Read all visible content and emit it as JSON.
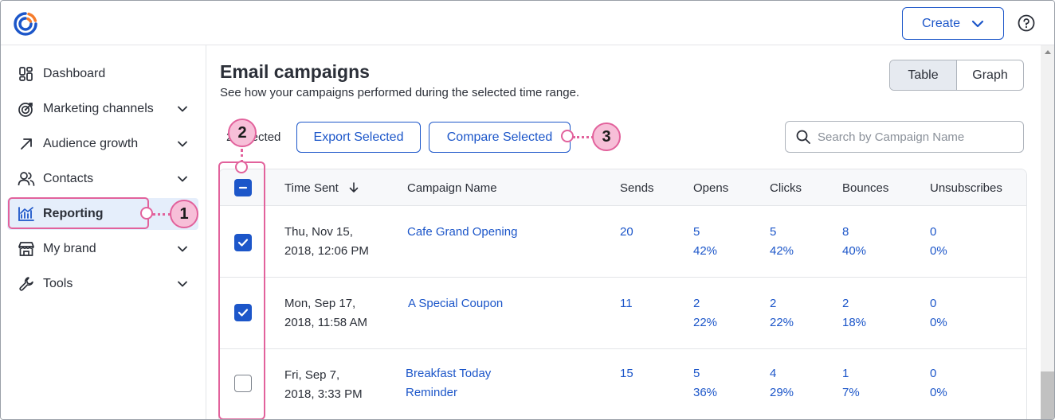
{
  "header": {
    "create_label": "Create"
  },
  "sidebar": {
    "items": [
      {
        "label": "Dashboard",
        "icon": "dashboard-icon"
      },
      {
        "label": "Marketing channels",
        "icon": "target-icon"
      },
      {
        "label": "Audience growth",
        "icon": "arrow-up-right-icon"
      },
      {
        "label": "Contacts",
        "icon": "people-icon"
      },
      {
        "label": "Reporting",
        "icon": "chart-icon"
      },
      {
        "label": "My brand",
        "icon": "storefront-icon"
      },
      {
        "label": "Tools",
        "icon": "wrench-icon"
      }
    ]
  },
  "main": {
    "title": "Email campaigns",
    "subtitle": "See how your campaigns performed during the selected time range.",
    "view_toggle": {
      "table": "Table",
      "graph": "Graph"
    },
    "selected_count": "2 selected",
    "export_label": "Export Selected",
    "compare_label": "Compare Selected",
    "search_placeholder": "Search by Campaign Name"
  },
  "table": {
    "columns": [
      "Time Sent",
      "Campaign Name",
      "Sends",
      "Opens",
      "Clicks",
      "Bounces",
      "Unsubscribes"
    ],
    "rows": [
      {
        "checked": true,
        "date1": "Thu, Nov 15,",
        "date2": "2018, 12:06 PM",
        "name1": "Cafe Grand Opening",
        "name2": "",
        "sends": "20",
        "opens": "5",
        "opens_pct": "42%",
        "clicks": "5",
        "clicks_pct": "42%",
        "bounces": "8",
        "bounces_pct": "40%",
        "unsubs": "0",
        "unsubs_pct": "0%"
      },
      {
        "checked": true,
        "date1": "Mon, Sep 17,",
        "date2": "2018, 11:58 AM",
        "name1": "A Special Coupon",
        "name2": "",
        "sends": "11",
        "opens": "2",
        "opens_pct": "22%",
        "clicks": "2",
        "clicks_pct": "22%",
        "bounces": "2",
        "bounces_pct": "18%",
        "unsubs": "0",
        "unsubs_pct": "0%"
      },
      {
        "checked": false,
        "date1": "Fri, Sep 7,",
        "date2": "2018, 3:33 PM",
        "name1": "Breakfast Today",
        "name2": "Reminder",
        "sends": "15",
        "opens": "5",
        "opens_pct": "36%",
        "clicks": "4",
        "clicks_pct": "29%",
        "bounces": "1",
        "bounces_pct": "7%",
        "unsubs": "0",
        "unsubs_pct": "0%"
      }
    ]
  },
  "callouts": [
    "1",
    "2",
    "3"
  ],
  "colors": {
    "accent": "#1c56c9",
    "callout": "#e2629c",
    "callout_fill": "#f7bfd8",
    "active_nav": "#e5eefb"
  }
}
